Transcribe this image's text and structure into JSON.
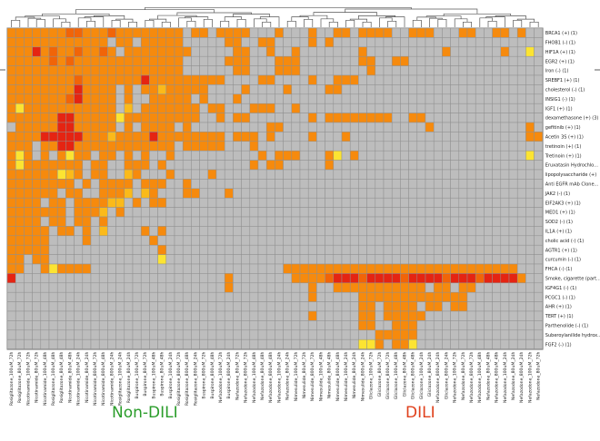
{
  "chart_data": {
    "type": "heatmap",
    "title": "",
    "xlabel": "",
    "ylabel": "",
    "colors": {
      "cell_values": {
        "0": "#bdbdbd",
        "1": "#fce432",
        "2": "#fbba1a",
        "3": "#f68a0d",
        "4": "#f16408",
        "5": "#e52412"
      },
      "grid": "#8f8f8f",
      "group_nondili": "#2a9d2a",
      "group_dili": "#e0401c"
    },
    "groups": [
      {
        "name": "Non-DILI",
        "color": "#2a9d2a"
      },
      {
        "name": "DILI",
        "color": "#e0401c"
      }
    ],
    "rows": [
      "BRCA1 (+) (1)",
      "FHOB1 (-) (1)",
      "HIF1A (+) (1)",
      "EGR2 (+) (1)",
      "Iron (-) (1)",
      "SREBF1 (+) (1)",
      "cholesterol (-) (1)",
      "INSIG1 (-) (1)",
      "IGF1 (+) (1)",
      "dexamethasone (+) (3)",
      "gefitinib (+) (1)",
      "Acetin 3S (+) (1)",
      "tretinoin (+) (1)",
      "Tretinoin (+) (1)",
      "Eruxatasin Hydrochlo...",
      "lipopolysaccharide (+)",
      "Anti EGFR mAb Clone...",
      "JAK2 (-) (1)",
      "EIF2AK3 (+) (1)",
      "MED1 (+) (1)",
      "SOD2 (-) (1)",
      "IL1A (+) (1)",
      "cholic acid (-) (1)",
      "AGTR1 (+) (1)",
      "curcumin (-) (1)",
      "FHCA (-) (1)",
      "Smoke, cigarette (part...",
      "IGF4G1 (-) (1)",
      "PCGC1 (-) (1)",
      "AHR (+) (1)",
      "TERT (+) (1)",
      "Parthenolide (-) (1)",
      "Suberoylanilide hydrox...",
      "FGF2 (-) (1)"
    ],
    "columns": [
      "Rosiglitazone_100uM_72h",
      "Rosiglitazone_80uM_72h",
      "Nicotinamide_100uM_72h",
      "Nicotinamide_80uM_72h",
      "Nicotinamide_100uM_48h",
      "Rosiglitazone_100uM_48h",
      "Rosiglitazone_80uM_48h",
      "Nicotinamide_80uM_48h",
      "Nicotinamide_100uM_24h",
      "Nicotinamide_80uM_24h",
      "Nicotinamide_800uM_72h",
      "Nicotinamide_800uM_48h",
      "Nicotinamide_800uM_24h",
      "Rosiglitazone_100uM_24h",
      "Rosiglitazone_80uM_24h",
      "Buspirone_100uM_72h",
      "Buspirone_80uM_72h",
      "Buspirone_100uM_48h",
      "Buspirone_80uM_48h",
      "Buspirone_100uM_24h",
      "Rosiglitazone_800uM_72h",
      "Rosiglitazone_800uM_48h",
      "Rosiglitazone_800uM_24h",
      "Buspirone_800uM_72h",
      "Buspirone_800uM_48h",
      "Nefazodone_100uM_72h",
      "Buspirone_800uM_24h",
      "Nefazodone_80uM_72h",
      "Nefazodone_800uM_72h",
      "Nefazodone_100uM_48h",
      "Nefazodone_80uM_48h",
      "Nefazodone_800uM_48h",
      "Nefazodone_100uM_24h",
      "Nefazodone_80uM_24h",
      "Nimesulide_100uM_72h",
      "Nimesulide_80uM_72h",
      "Nimesulide_800uM_72h",
      "Nimesulide_100uM_48h",
      "Nimesulide_80uM_48h",
      "Nimesulide_800uM_48h",
      "Nimesulide_100uM_24h",
      "Nimesulide_80uM_24h",
      "Nimesulide_800uM_24h",
      "Gliclazone_100uM_72h",
      "Gliclazone_80uM_72h",
      "Gliclazone_800uM_72h",
      "Gliclazone_100uM_48h",
      "Gliclazone_80uM_48h",
      "Gliclazone_800uM_48h",
      "Gliclazone_100uM_24h",
      "Gliclazone_80uM_24h",
      "Nefazodone_800uM_24h",
      "Gliclazone_800uM_24h",
      "Nefazodone_100uM_72h",
      "Nefazodone_80uM_72h",
      "Nefazodone_800uM_72h",
      "Nefazodone_100uM_48h",
      "Nefazodone_80uM_48h",
      "Nefazodone_800uM_48h",
      "Nefazodone_100uM_24h",
      "Nefazodone_80uM_24h",
      "Nefazodone_800uM_24h",
      "Nefazodone_100uM_72h",
      "Nefazodone_80uM_72h"
    ],
    "values": [
      "3333333443334333333330330333300030003003303333003330003300330300",
      "3333333333330330333330000033003300003030000000000000000000000000",
      "3335343343343033333333000003300300300000003000000000300000030010",
      "3333343433333333333330000033300033300000003300330000000000000000",
      "3333333333333333333330000003300033300000000300000000000000000000",
      "3333333343333333533333333300003300003003330000000000000000000000",
      "3333333353333030332333330000300003000033000000000000000000000000",
      "3333333453333030033333030003000000000000000000000000000000000000",
      "3133333333333020333333303300033300300000000000000000000000000000",
      "3333335533333133333333300303300000003033333333003300000000000000",
      "0333335533333030333303000000000330000000000000000030000000000030",
      "3333555553332333353333333303330300003000300000000000000000000033",
      "3330335533333333333303333300030000000000000000000000000000000000",
      "3130303133033030300300000000003033300031030000000000000000000010",
      "3133333330330033303000000000030330000030000000000000000000000000",
      "3333331230330023000300003000000000000000000000000000000000000000",
      "3333333303033330333003000000000000000000000000000000000000000000",
      "3333330330033320230003300030000000000000000000000000000000000000",
      "3333033033332203033000000000000000000000000000000000000000000000",
      "3333333033320300000000000000000000000000000000000000000000000000",
      "3333033033030000000000000000000000000000000000000000000000000000",
      "3333303303020000303000000000000000000000000000000000000000000000",
      "3333300003000000030000000000000000000000000000000000000000000000",
      "3333300000000000003000000000000000000000000000000000000000000000",
      "3303300000000000001000000000000000000000000000000000000000000000",
      "3300313333000000000000000000000003333333333333333333333333333000",
      "5000000000000000000000000030000000333345554555545555455545555300",
      "0000000000000000000000000030000000003003333333333303303300000000",
      "0000000000000000000000000000000000003000003333333333333000000000",
      "0000000000000000000000000000000000000000003303333033033000000000",
      "0000000000000000000000000000000000003000003303333300000000000000",
      "0000000000000000000000000000000000000000003300333000000000000000",
      "0000000000000000000000000000000000000000000033333000000000000000",
      "0000000000000000000000000000000000000000001130331000000000000000"
    ]
  }
}
